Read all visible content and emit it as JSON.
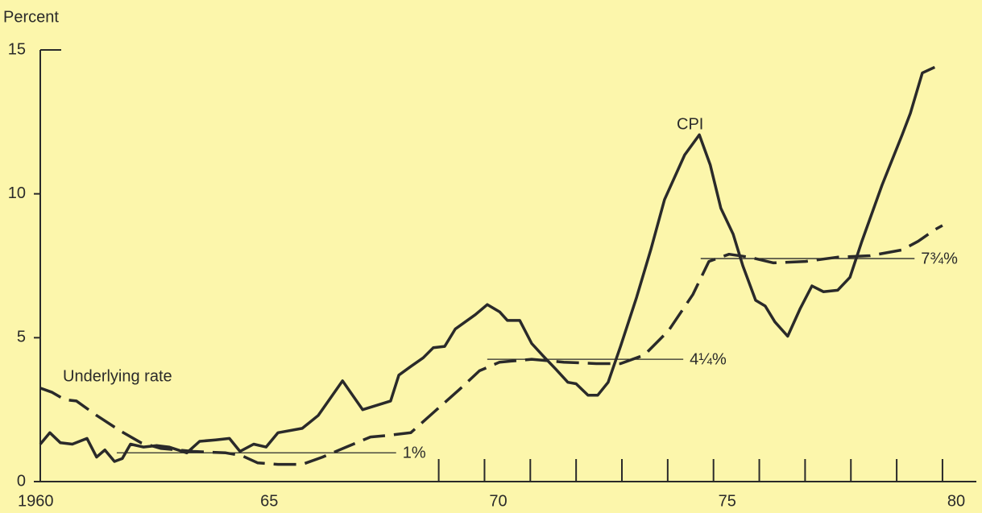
{
  "chart_data": {
    "type": "line",
    "y_label": "Percent",
    "xlim": [
      1960,
      1980
    ],
    "xticks": [
      1960,
      {
        "value": 1965,
        "label": "65"
      },
      {
        "value": 1970,
        "label": "70"
      },
      {
        "value": 1975,
        "label": "75"
      },
      {
        "value": 1980,
        "label": "80"
      }
    ],
    "xminor_ticks": [
      1968.7,
      1969.7,
      1970.7,
      1971.7,
      1972.7,
      1973.7,
      1974.7,
      1975.7,
      1976.7,
      1977.7,
      1978.7,
      1979.7
    ],
    "ylim": [
      0,
      15
    ],
    "yticks": [
      0,
      5,
      10,
      15
    ],
    "series": [
      {
        "name": "CPI",
        "color": "#2a2a2a",
        "dash": false,
        "x": [
          1960.0,
          1960.21,
          1960.44,
          1960.7,
          1961.02,
          1961.23,
          1961.41,
          1961.62,
          1961.79,
          1961.97,
          1962.25,
          1962.55,
          1962.81,
          1963.2,
          1963.48,
          1963.83,
          1964.13,
          1964.36,
          1964.66,
          1964.93,
          1965.19,
          1965.72,
          1966.07,
          1966.6,
          1967.04,
          1967.65,
          1967.83,
          1968.09,
          1968.36,
          1968.58,
          1968.83,
          1969.06,
          1969.5,
          1969.76,
          1970.03,
          1970.2,
          1970.47,
          1970.73,
          1970.99,
          1971.26,
          1971.52,
          1971.7,
          1971.96,
          1972.17,
          1972.4,
          1972.67,
          1973.02,
          1973.33,
          1973.63,
          1974.07,
          1974.39,
          1974.63,
          1974.86,
          1975.13,
          1975.34,
          1975.62,
          1975.83,
          1976.04,
          1976.32,
          1976.59,
          1976.85,
          1977.1,
          1977.41,
          1977.68,
          1977.94,
          1978.38,
          1978.82,
          1979.0,
          1979.26,
          1979.53
        ],
        "values": [
          1.3,
          1.7,
          1.35,
          1.3,
          1.5,
          0.85,
          1.1,
          0.7,
          0.8,
          1.3,
          1.2,
          1.25,
          1.2,
          1.0,
          1.4,
          1.45,
          1.5,
          1.05,
          1.3,
          1.2,
          1.7,
          1.85,
          2.3,
          3.5,
          2.5,
          2.8,
          3.7,
          4.0,
          4.3,
          4.65,
          4.7,
          5.3,
          5.8,
          6.15,
          5.9,
          5.6,
          5.6,
          4.8,
          4.35,
          3.9,
          3.45,
          3.4,
          3.0,
          3.0,
          3.45,
          4.7,
          6.4,
          8.05,
          9.8,
          11.35,
          12.05,
          11.0,
          9.5,
          8.6,
          7.5,
          6.3,
          6.1,
          5.55,
          5.05,
          6.0,
          6.8,
          6.6,
          6.65,
          7.1,
          8.35,
          10.3,
          12.05,
          12.8,
          14.2,
          14.4
        ]
      },
      {
        "name": "Underlying rate",
        "color": "#2a2a2a",
        "dash": true,
        "x": [
          1960.0,
          1960.26,
          1960.53,
          1960.79,
          1961.23,
          1961.76,
          1962.2,
          1962.64,
          1963.34,
          1964.05,
          1964.4,
          1964.75,
          1965.19,
          1965.72,
          1966.16,
          1966.68,
          1967.21,
          1967.56,
          1968.09,
          1968.62,
          1969.15,
          1969.59,
          1970.03,
          1970.73,
          1971.43,
          1972.14,
          1972.67,
          1973.19,
          1973.72,
          1974.25,
          1974.6,
          1975.04,
          1975.48,
          1976.01,
          1976.71,
          1977.41,
          1978.12,
          1978.82,
          1979.17,
          1979.53,
          1979.7
        ],
        "values": [
          3.25,
          3.1,
          2.85,
          2.8,
          2.3,
          1.75,
          1.35,
          1.15,
          1.05,
          1.0,
          0.9,
          0.65,
          0.6,
          0.6,
          0.85,
          1.2,
          1.55,
          1.6,
          1.7,
          2.45,
          3.2,
          3.85,
          4.15,
          4.25,
          4.15,
          4.1,
          4.1,
          4.4,
          5.25,
          6.5,
          7.65,
          7.9,
          7.8,
          7.6,
          7.65,
          7.8,
          7.85,
          8.05,
          8.35,
          8.75,
          8.9
        ]
      }
    ],
    "reference_lines": [
      {
        "value": 1,
        "label": "1%",
        "x": [
          1961.67,
          1967.77
        ]
      },
      {
        "value": 4.25,
        "label": "4¼%",
        "x": [
          1969.76,
          1974.04
        ]
      },
      {
        "value": 7.75,
        "label": "7¾%",
        "x": [
          1974.42,
          1979.09
        ]
      }
    ]
  }
}
